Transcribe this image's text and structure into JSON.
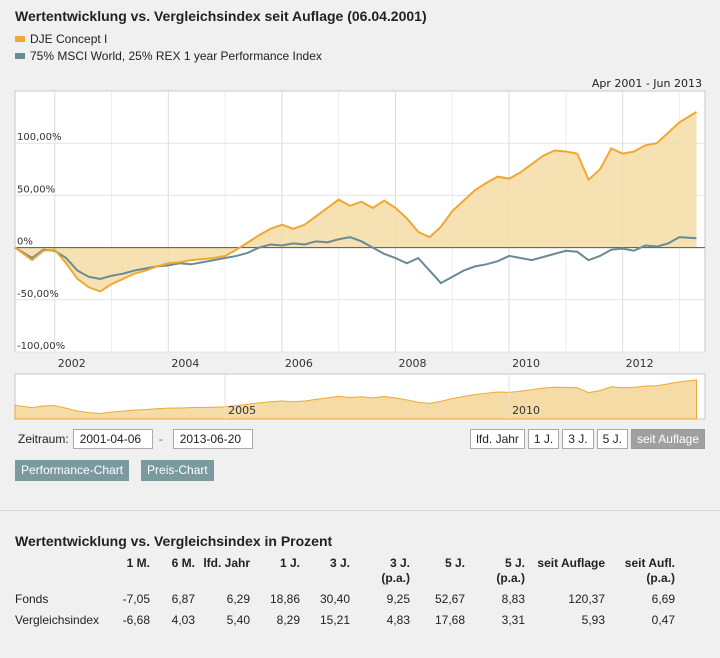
{
  "header": {
    "title": "Wertentwicklung vs. Vergleichsindex seit Auflage (06.04.2001)"
  },
  "legend": [
    {
      "label": "DJE Concept I",
      "color": "#f0a830"
    },
    {
      "label": "75% MSCI World, 25% REX 1 year Performance Index",
      "color": "#6a8a95"
    }
  ],
  "chart_data": {
    "type": "area",
    "title": "Wertentwicklung vs. Vergleichsindex seit Auflage (06.04.2001)",
    "range_label": "Apr 2001 - Jun 2013",
    "x": [
      2001.3,
      2001.6,
      2001.8,
      2002.0,
      2002.2,
      2002.4,
      2002.6,
      2002.8,
      2003.0,
      2003.2,
      2003.4,
      2003.6,
      2003.8,
      2004.0,
      2004.2,
      2004.4,
      2004.6,
      2004.8,
      2005.0,
      2005.2,
      2005.4,
      2005.6,
      2005.8,
      2006.0,
      2006.2,
      2006.4,
      2006.6,
      2006.8,
      2007.0,
      2007.2,
      2007.4,
      2007.6,
      2007.8,
      2008.0,
      2008.2,
      2008.4,
      2008.6,
      2008.8,
      2009.0,
      2009.2,
      2009.4,
      2009.6,
      2009.8,
      2010.0,
      2010.2,
      2010.4,
      2010.6,
      2010.8,
      2011.0,
      2011.2,
      2011.4,
      2011.6,
      2011.8,
      2012.0,
      2012.2,
      2012.4,
      2012.6,
      2012.8,
      2013.0,
      2013.3
    ],
    "series": [
      {
        "name": "DJE Concept I",
        "values": [
          0,
          -12,
          -3,
          -2,
          -15,
          -30,
          -38,
          -42,
          -35,
          -30,
          -25,
          -22,
          -18,
          -15,
          -14,
          -12,
          -11,
          -10,
          -8,
          -2,
          5,
          12,
          18,
          22,
          18,
          22,
          30,
          38,
          46,
          40,
          44,
          38,
          45,
          38,
          28,
          15,
          10,
          20,
          35,
          45,
          55,
          62,
          68,
          66,
          72,
          80,
          88,
          93,
          92,
          90,
          65,
          75,
          95,
          90,
          92,
          98,
          100,
          110,
          120,
          130
        ]
      },
      {
        "name": "75% MSCI World, 25% REX 1 year Performance Index",
        "values": [
          0,
          -10,
          -2,
          -3,
          -10,
          -22,
          -28,
          -30,
          -27,
          -25,
          -22,
          -20,
          -18,
          -17,
          -15,
          -16,
          -14,
          -12,
          -10,
          -8,
          -5,
          0,
          3,
          2,
          4,
          3,
          6,
          5,
          8,
          10,
          6,
          0,
          -6,
          -10,
          -15,
          -10,
          -22,
          -34,
          -28,
          -22,
          -18,
          -16,
          -13,
          -8,
          -10,
          -12,
          -9,
          -6,
          -3,
          -4,
          -12,
          -8,
          -2,
          -1,
          -3,
          2,
          1,
          4,
          10,
          9
        ]
      }
    ],
    "ylim": [
      -100,
      150
    ],
    "yticks": [
      "100,00%",
      "50,00%",
      "0%",
      "-50,00%",
      "-100,00%"
    ],
    "xticks": [
      "2002",
      "2004",
      "2006",
      "2008",
      "2010",
      "2012"
    ],
    "navigator_labels": [
      "2005",
      "2010"
    ]
  },
  "controls": {
    "zeitraum_label": "Zeitraum:",
    "start_date": "2001-04-06",
    "separator": "-",
    "end_date": "2013-06-20",
    "periods": [
      {
        "label": "lfd. Jahr",
        "active": false
      },
      {
        "label": "1 J.",
        "active": false
      },
      {
        "label": "3 J.",
        "active": false
      },
      {
        "label": "5 J.",
        "active": false
      },
      {
        "label": "seit Auflage",
        "active": true
      }
    ],
    "performance_chart": "Performance-Chart",
    "preis_chart": "Preis-Chart"
  },
  "table": {
    "title": "Wertentwicklung vs. Vergleichsindex in Prozent",
    "headers": [
      [
        "",
        ""
      ],
      [
        "1 M.",
        ""
      ],
      [
        "6 M.",
        ""
      ],
      [
        "lfd. Jahr",
        ""
      ],
      [
        "1 J.",
        ""
      ],
      [
        "3 J.",
        ""
      ],
      [
        "3 J.",
        "(p.a.)"
      ],
      [
        "5 J.",
        ""
      ],
      [
        "5 J.",
        "(p.a.)"
      ],
      [
        "seit Auflage",
        ""
      ],
      [
        "seit Aufl.",
        "(p.a.)"
      ]
    ],
    "rows": [
      [
        "Fonds",
        "-7,05",
        "6,87",
        "6,29",
        "18,86",
        "30,40",
        "9,25",
        "52,67",
        "8,83",
        "120,37",
        "6,69"
      ],
      [
        "Vergleichsindex",
        "-6,68",
        "4,03",
        "5,40",
        "8,29",
        "15,21",
        "4,83",
        "17,68",
        "3,31",
        "5,93",
        "0,47"
      ]
    ]
  }
}
